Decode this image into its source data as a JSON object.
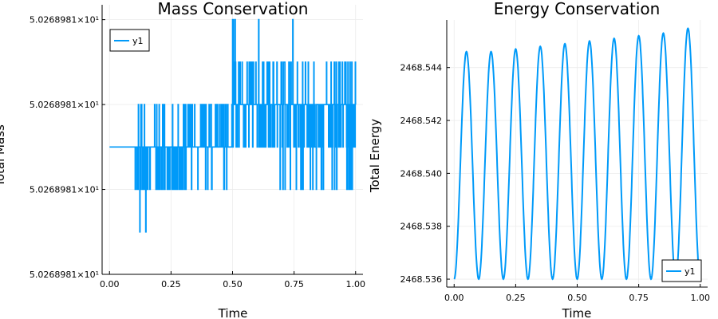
{
  "colors": {
    "series": "#009af9",
    "grid": "#ececec",
    "axis": "#000000"
  },
  "chart_data": [
    {
      "type": "line",
      "title": "Mass Conservation",
      "xlabel": "Time",
      "ylabel": "Total Mass",
      "x_ticks": [
        "0.00",
        "0.25",
        "0.50",
        "0.75",
        "1.00"
      ],
      "x_tick_values": [
        0,
        0.25,
        0.5,
        0.75,
        1.0
      ],
      "xlim": [
        -0.03,
        1.03
      ],
      "y_ticks": [
        "5.0268981×10¹",
        "5.0268981×10¹",
        "5.0268981×10¹",
        "5.0268981×10¹"
      ],
      "y_tick_levels": [
        -4,
        -2,
        0,
        2
      ],
      "ylim_levels": [
        -4,
        2.35
      ],
      "baseline_level": -1,
      "legend": {
        "entries": [
          "y1"
        ],
        "position": "top-left"
      },
      "series": [
        {
          "name": "y1",
          "description": "round-off noise around a constant total mass, quantized levels -3..2 relative to the reference tick"
        }
      ]
    },
    {
      "type": "line",
      "title": "Energy Conservation",
      "xlabel": "Time",
      "ylabel": "Total Energy",
      "x_ticks": [
        "0.00",
        "0.25",
        "0.50",
        "0.75",
        "1.00"
      ],
      "x_tick_values": [
        0,
        0.25,
        0.5,
        0.75,
        1.0
      ],
      "xlim": [
        -0.03,
        1.03
      ],
      "y_ticks": [
        "2468.536",
        "2468.538",
        "2468.540",
        "2468.542",
        "2468.544"
      ],
      "y_tick_values": [
        2468.536,
        2468.538,
        2468.54,
        2468.542,
        2468.544
      ],
      "ylim": [
        2468.5357,
        2468.5458
      ],
      "legend": {
        "entries": [
          "y1"
        ],
        "position": "bottom-right"
      },
      "series": [
        {
          "name": "y1",
          "oscillation_period": 0.1,
          "minimum": 2468.536,
          "peaks": [
            [
              0.05,
              2468.5446
            ],
            [
              0.15,
              2468.5446
            ],
            [
              0.25,
              2468.5447
            ],
            [
              0.35,
              2468.5448
            ],
            [
              0.45,
              2468.5449
            ],
            [
              0.55,
              2468.545
            ],
            [
              0.65,
              2468.5451
            ],
            [
              0.75,
              2468.5452
            ],
            [
              0.85,
              2468.5453
            ],
            [
              0.96,
              2468.5455
            ]
          ],
          "end": [
            1.0,
            2468.5394
          ]
        }
      ]
    }
  ]
}
